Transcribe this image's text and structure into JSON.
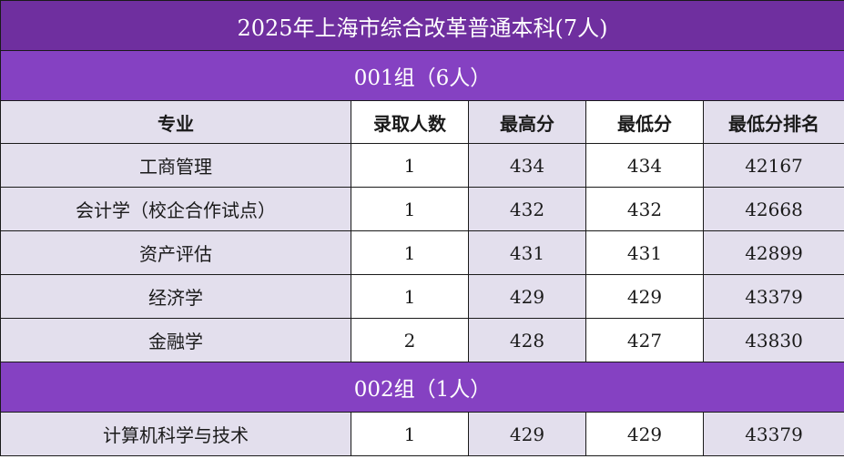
{
  "title": "2025年上海市综合改革普通本科(7人)",
  "columns": [
    "专业",
    "录取人数",
    "最高分",
    "最低分",
    "最低分排名"
  ],
  "groups": [
    {
      "label": "001组（6人）",
      "rows": [
        {
          "major": "工商管理",
          "admitted": "1",
          "max": "434",
          "min": "434",
          "rank": "42167"
        },
        {
          "major": "会计学（校企合作试点）",
          "admitted": "1",
          "max": "432",
          "min": "432",
          "rank": "42668"
        },
        {
          "major": "资产评估",
          "admitted": "1",
          "max": "431",
          "min": "431",
          "rank": "42899"
        },
        {
          "major": "经济学",
          "admitted": "1",
          "max": "429",
          "min": "429",
          "rank": "43379"
        },
        {
          "major": "金融学",
          "admitted": "2",
          "max": "428",
          "min": "427",
          "rank": "43830"
        }
      ]
    },
    {
      "label": "002组（1人）",
      "rows": [
        {
          "major": "计算机科学与技术",
          "admitted": "1",
          "max": "429",
          "min": "429",
          "rank": "43379"
        }
      ]
    }
  ],
  "colors": {
    "title_bg": "#6f2f9f",
    "group_bg": "#8541c2",
    "lavender_cell": "#e3dfed"
  }
}
